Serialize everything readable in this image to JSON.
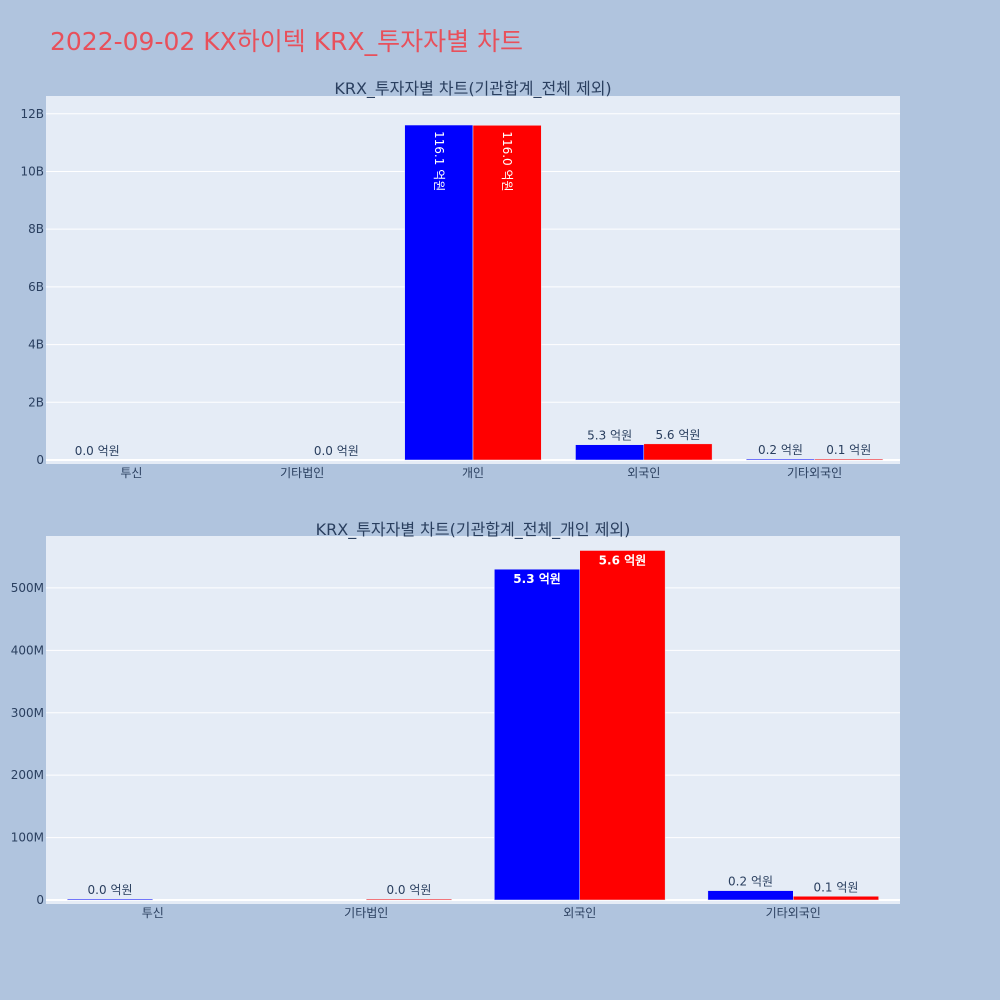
{
  "page_title": "2022-09-02 KX하이텍 KRX_투자자별 차트",
  "colors": {
    "background": "#b0c4de",
    "plot_bg": "#e5ecf6",
    "title": "#e8505b",
    "series_blue": "#0000ff",
    "series_red": "#ff0000"
  },
  "chart_data": [
    {
      "type": "bar",
      "title": "KRX_투자자별 차트(기관합계_전체 제외)",
      "categories": [
        "투신",
        "기타법인",
        "개인",
        "외국인",
        "기타외국인"
      ],
      "series": [
        {
          "color": "#0000ff",
          "values": [
            0.0,
            0.0,
            11610000000,
            530000000,
            15000000
          ],
          "labels": [
            "0.0 억원",
            "",
            "116.1 억원",
            "5.3 억원",
            "0.2 억원"
          ]
        },
        {
          "color": "#ff0000",
          "values": [
            0.0,
            0.0,
            11600000000,
            560000000,
            6000000
          ],
          "labels": [
            "",
            "0.0 억원",
            "116.0 억원",
            "5.6 억원",
            "0.1 억원"
          ]
        }
      ],
      "yticks": [
        "0",
        "2B",
        "4B",
        "6B",
        "8B",
        "10B",
        "12B"
      ],
      "ytick_values": [
        0,
        2000000000,
        4000000000,
        6000000000,
        8000000000,
        10000000000,
        12000000000
      ],
      "ylim": [
        0,
        12200000000
      ],
      "grid": true,
      "legend": "none"
    },
    {
      "type": "bar",
      "title": "KRX_투자자별 차트(기관합계_전체_개인 제외)",
      "categories": [
        "투신",
        "기타법인",
        "외국인",
        "기타외국인"
      ],
      "series": [
        {
          "color": "#0000ff",
          "values": [
            1500000,
            0.0,
            530000000,
            15000000
          ],
          "labels": [
            "0.0 억원",
            "",
            "5.3 억원",
            "0.2 억원"
          ]
        },
        {
          "color": "#ff0000",
          "values": [
            0.0,
            1000000,
            560000000,
            6000000
          ],
          "labels": [
            "",
            "0.0 억원",
            "5.6 억원",
            "0.1 억원"
          ]
        }
      ],
      "yticks": [
        "0",
        "100M",
        "200M",
        "300M",
        "400M",
        "500M"
      ],
      "ytick_values": [
        0,
        100000000,
        200000000,
        300000000,
        400000000,
        500000000
      ],
      "ylim": [
        0,
        580000000
      ],
      "grid": true,
      "legend": "none"
    }
  ]
}
